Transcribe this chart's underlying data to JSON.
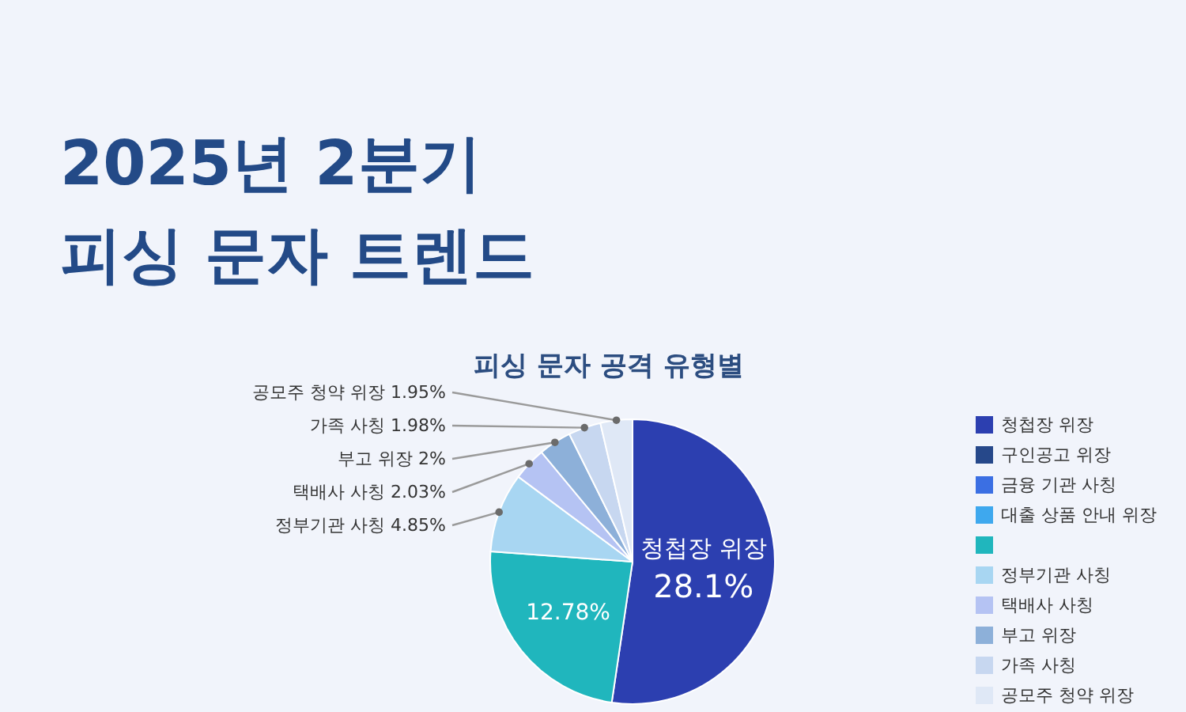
{
  "chart_data": {
    "type": "pie",
    "title": "2025년 2분기\n피싱 문자 트렌드",
    "subtitle": "피싱 문자 공격 유형별",
    "categories": [
      "청첩장 위장",
      "구인공고 위장",
      "금융 기관 사칭",
      "대출 상품 안내 위장",
      null,
      "정부기관 사칭",
      "택배사 사칭",
      "부고 위장",
      "가족 사칭",
      "공모주 청약 위장"
    ],
    "values": [
      28.1,
      null,
      null,
      null,
      12.78,
      4.85,
      2.03,
      2,
      1.98,
      1.95
    ],
    "value_labels": [
      "28.1%",
      null,
      null,
      null,
      "12.78%",
      "4.85%",
      "2.03%",
      "2%",
      "1.98%",
      "1.95%"
    ],
    "colors": [
      "#2c3fb0",
      "#26488a",
      "#3b6fe3",
      "#3ea8ee",
      "#20b6bd",
      "#a8d6f2",
      "#b5c3f3",
      "#8db0d9",
      "#c7d7f0",
      "#dfe8f6"
    ],
    "legend": "right"
  }
}
